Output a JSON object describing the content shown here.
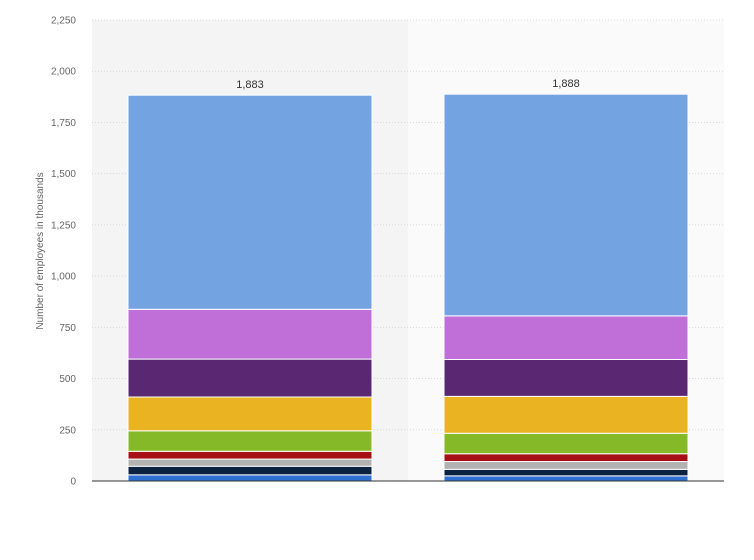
{
  "chart_data": {
    "type": "bar",
    "stacked": true,
    "categories": [
      "",
      ""
    ],
    "ylabel": "Number of employees in thousands",
    "ylim": [
      0,
      2250
    ],
    "yticks": [
      0,
      250,
      500,
      750,
      1000,
      1250,
      1500,
      1750,
      2000,
      2250
    ],
    "ytick_labels": [
      "0",
      "250",
      "500",
      "750",
      "1,000",
      "1,250",
      "1,500",
      "1,750",
      "2,000",
      "2,250"
    ],
    "grid": true,
    "legend": "none",
    "totals": [
      1883,
      1888
    ],
    "total_labels": [
      "1,883",
      "1,888"
    ],
    "series": [
      {
        "color": "#2f6fd1",
        "values": [
          30,
          25
        ]
      },
      {
        "color": "#0b2340",
        "values": [
          42,
          32
        ]
      },
      {
        "color": "#b2b2b2",
        "values": [
          35,
          38
        ]
      },
      {
        "color": "#a50f15",
        "values": [
          38,
          38
        ]
      },
      {
        "color": "#86b927",
        "values": [
          100,
          100
        ]
      },
      {
        "color": "#e9b322",
        "values": [
          165,
          180
        ]
      },
      {
        "color": "#5a2872",
        "values": [
          185,
          180
        ]
      },
      {
        "color": "#c06fd9",
        "values": [
          243,
          213
        ]
      },
      {
        "color": "#74a3e2",
        "values": [
          1045,
          1082
        ]
      }
    ]
  }
}
